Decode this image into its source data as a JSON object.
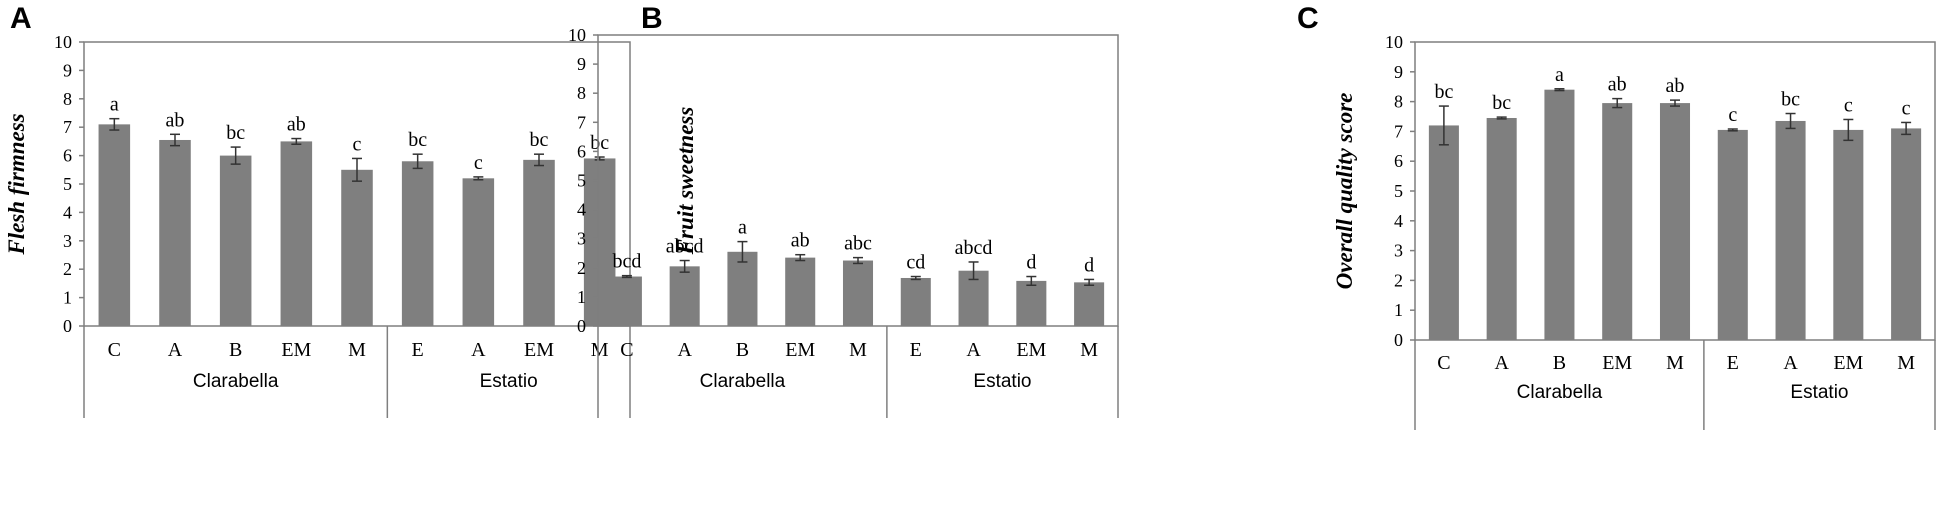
{
  "chart_data": [
    {
      "panel": "A",
      "type": "bar",
      "ylabel": "Flesh firmness",
      "ylim": [
        0,
        10
      ],
      "yticks": [
        0,
        1,
        2,
        3,
        4,
        5,
        6,
        7,
        8,
        9,
        10
      ],
      "categories": [
        "C",
        "A",
        "B",
        "EM",
        "M",
        "E",
        "A",
        "EM",
        "M"
      ],
      "groups": [
        {
          "label": "Clarabella",
          "count": 5
        },
        {
          "label": "Estatio",
          "count": 4
        }
      ],
      "values": [
        7.1,
        6.55,
        6.0,
        6.5,
        5.5,
        5.8,
        5.2,
        5.85,
        5.9
      ],
      "errors": [
        0.2,
        0.2,
        0.3,
        0.1,
        0.4,
        0.25,
        0.05,
        0.2,
        0.05
      ],
      "letters": [
        "a",
        "ab",
        "bc",
        "ab",
        "c",
        "bc",
        "c",
        "bc",
        "bc"
      ]
    },
    {
      "panel": "B",
      "type": "bar",
      "ylabel": "Fruit sweetness",
      "ylim": [
        0,
        10
      ],
      "yticks": [
        0,
        1,
        2,
        3,
        4,
        5,
        6,
        7,
        8,
        9,
        10
      ],
      "categories": [
        "C",
        "A",
        "B",
        "EM",
        "M",
        "E",
        "A",
        "EM",
        "M"
      ],
      "groups": [
        {
          "label": "Clarabella",
          "count": 5
        },
        {
          "label": "Estatio",
          "count": 4
        }
      ],
      "values": [
        1.7,
        2.05,
        2.55,
        2.35,
        2.25,
        1.65,
        1.9,
        1.55,
        1.5
      ],
      "errors": [
        0.03,
        0.2,
        0.35,
        0.1,
        0.1,
        0.05,
        0.3,
        0.15,
        0.1
      ],
      "letters": [
        "bcd",
        "abcd",
        "a",
        "ab",
        "abc",
        "cd",
        "abcd",
        "d",
        "d"
      ]
    },
    {
      "panel": "C",
      "type": "bar",
      "ylabel": "Overall quality score",
      "ylim": [
        0,
        10
      ],
      "yticks": [
        0,
        1,
        2,
        3,
        4,
        5,
        6,
        7,
        8,
        9,
        10
      ],
      "categories": [
        "C",
        "A",
        "B",
        "EM",
        "M",
        "E",
        "A",
        "EM",
        "M"
      ],
      "groups": [
        {
          "label": "Clarabella",
          "count": 5
        },
        {
          "label": "Estatio",
          "count": 4
        }
      ],
      "values": [
        7.2,
        7.45,
        8.4,
        7.95,
        7.95,
        7.05,
        7.35,
        7.05,
        7.1
      ],
      "errors": [
        0.65,
        0.03,
        0.03,
        0.15,
        0.1,
        0.03,
        0.25,
        0.35,
        0.2
      ],
      "letters": [
        "bc",
        "bc",
        "a",
        "ab",
        "ab",
        "c",
        "bc",
        "c",
        "c"
      ]
    }
  ]
}
